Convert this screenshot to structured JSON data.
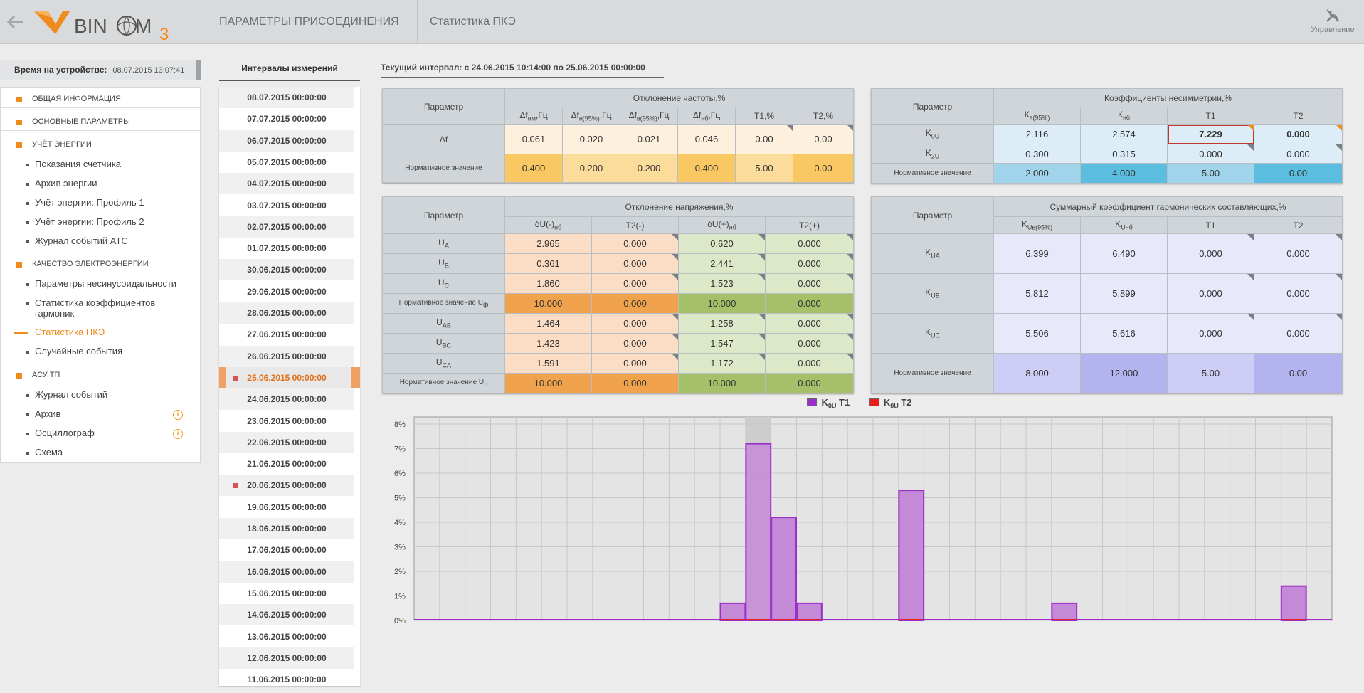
{
  "header": {
    "logo_text": "BINOM3",
    "section1": "ПАРАМЕТРЫ ПРИСОЕДИНЕНИЯ",
    "section2": "Статистика ПКЭ",
    "tools_label": "Управление"
  },
  "device": {
    "label": "Время на устройстве:",
    "value": "08.07.2015 13:07:41"
  },
  "menu": {
    "groups": [
      "ОБЩАЯ ИНФОРМАЦИЯ",
      "ОСНОВНЫЕ ПАРАМЕТРЫ",
      "УЧЁТ ЭНЕРГИИ",
      "КАЧЕСТВО ЭЛЕКТРОЭНЕРГИИ",
      "АСУ ТП"
    ],
    "energy_items": [
      "Показания счетчика",
      "Архив энергии",
      "Учёт энергии: Профиль 1",
      "Учёт энергии: Профиль 2",
      "Журнал событий АТС"
    ],
    "quality_items": [
      "Параметры несинусоидальности",
      "Статистика коэффициентов",
      "гармоник",
      "Статистика ПКЭ",
      "Случайные события"
    ],
    "asu_items": [
      "Журнал событий",
      "Архив",
      "Осциллограф",
      "Схема"
    ],
    "warn_glyph": "i"
  },
  "intervals": {
    "title": "Интервалы измерений",
    "items": [
      "08.07.2015 00:00:00",
      "07.07.2015 00:00:00",
      "06.07.2015 00:00:00",
      "05.07.2015 00:00:00",
      "04.07.2015 00:00:00",
      "03.07.2015 00:00:00",
      "02.07.2015 00:00:00",
      "01.07.2015 00:00:00",
      "30.06.2015 00:00:00",
      "29.06.2015 00:00:00",
      "28.06.2015 00:00:00",
      "27.06.2015 00:00:00",
      "26.06.2015 00:00:00",
      "25.06.2015 00:00:00",
      "24.06.2015 00:00:00",
      "23.06.2015 00:00:00",
      "22.06.2015 00:00:00",
      "21.06.2015 00:00:00",
      "20.06.2015 00:00:00",
      "19.06.2015 00:00:00",
      "18.06.2015 00:00:00",
      "17.06.2015 00:00:00",
      "16.06.2015 00:00:00",
      "15.06.2015 00:00:00",
      "14.06.2015 00:00:00",
      "13.06.2015 00:00:00",
      "12.06.2015 00:00:00",
      "11.06.2015 00:00:00"
    ],
    "selected_index": 13,
    "marked_indices": [
      13,
      18
    ]
  },
  "current_interval": "Текущий интервал: с 24.06.2015 10:14:00 по 25.06.2015 00:00:00",
  "freq_table": {
    "param_header": "Параметр",
    "group_header": "Отклонение частоты,%",
    "cols": [
      "Δf_нм,Гц",
      "Δf_н(95%),Гц",
      "Δf_в(95%),Гц",
      "Δf_нб,Гц",
      "T1,%",
      "T2,%"
    ],
    "row_label": "Δf",
    "values": [
      "0.061",
      "0.020",
      "0.021",
      "0.046",
      "0.00",
      "0.00"
    ],
    "norm_label": "Нормативное значение",
    "norm_values": [
      "0.400",
      "0.200",
      "0.200",
      "0.400",
      "5.00",
      "0.00"
    ]
  },
  "unb_table": {
    "param_header": "Параметр",
    "group_header": "Коэффициенты несимметрии,%",
    "cols": [
      "К_в(95%)",
      "К_нб",
      "T1",
      "T2"
    ],
    "rows": [
      {
        "label": "K_0U",
        "values": [
          "2.116",
          "2.574",
          "7.229",
          "0.000"
        ]
      },
      {
        "label": "K_2U",
        "values": [
          "0.300",
          "0.315",
          "0.000",
          "0.000"
        ]
      }
    ],
    "norm_label": "Нормативное значение",
    "norm_values": [
      "2.000",
      "4.000",
      "5.00",
      "0.00"
    ]
  },
  "volt_table": {
    "param_header": "Параметр",
    "group_header": "Отклонение напряжения,%",
    "cols": [
      "δU(-)_нб",
      "T2(-)",
      "δU(+)_нб",
      "T2(+)"
    ],
    "rows": [
      {
        "label": "U_A",
        "values": [
          "2.965",
          "0.000",
          "0.620",
          "0.000"
        ]
      },
      {
        "label": "U_B",
        "values": [
          "0.361",
          "0.000",
          "2.441",
          "0.000"
        ]
      },
      {
        "label": "U_C",
        "values": [
          "1.860",
          "0.000",
          "1.523",
          "0.000"
        ]
      },
      {
        "label": "Нормативное значение U_ф",
        "values": [
          "10.000",
          "0.000",
          "10.000",
          "0.000"
        ],
        "norm": true
      },
      {
        "label": "U_AB",
        "values": [
          "1.464",
          "0.000",
          "1.258",
          "0.000"
        ]
      },
      {
        "label": "U_BC",
        "values": [
          "1.423",
          "0.000",
          "1.547",
          "0.000"
        ]
      },
      {
        "label": "U_CA",
        "values": [
          "1.591",
          "0.000",
          "1.172",
          "0.000"
        ]
      },
      {
        "label": "Нормативное значение U_л",
        "values": [
          "10.000",
          "0.000",
          "10.000",
          "0.000"
        ],
        "norm": true
      }
    ]
  },
  "harm_table": {
    "param_header": "Параметр",
    "group_header": "Суммарный коэффициент гармонических составляющих,%",
    "cols": [
      "K_Uв(95%)",
      "K_Uнб",
      "T1",
      "T2"
    ],
    "rows": [
      {
        "label": "K_UA",
        "values": [
          "6.399",
          "6.490",
          "0.000",
          "0.000"
        ]
      },
      {
        "label": "K_UB",
        "values": [
          "5.812",
          "5.899",
          "0.000",
          "0.000"
        ]
      },
      {
        "label": "K_UC",
        "values": [
          "5.506",
          "5.616",
          "0.000",
          "0.000"
        ]
      }
    ],
    "norm_label": "Нормативное значение",
    "norm_values": [
      "8.000",
      "12.000",
      "5.00",
      "0.00"
    ]
  },
  "colors": {
    "series_t1": "#9b30c8",
    "series_t1_fill": "#c48ad8",
    "series_t2": "#e8201c",
    "accent": "#f08c1e"
  },
  "chart_data": {
    "type": "bar",
    "series": [
      {
        "name": "K0U T1",
        "values": [
          0,
          0,
          0,
          0,
          0,
          0,
          0,
          0,
          0,
          0,
          0,
          0,
          0.7,
          7.2,
          4.2,
          0.7,
          0,
          0,
          0,
          5.3,
          0,
          0,
          0,
          0,
          0,
          0.7,
          0,
          0,
          0,
          0,
          0,
          0,
          0,
          0,
          1.4,
          0
        ]
      },
      {
        "name": "K0U T2",
        "values": [
          0,
          0,
          0,
          0,
          0,
          0,
          0,
          0,
          0,
          0,
          0,
          0,
          0,
          0,
          0,
          0,
          0,
          0,
          0,
          0,
          0,
          0,
          0,
          0,
          0,
          0,
          0,
          0,
          0,
          0,
          0,
          0,
          0,
          0,
          0,
          0
        ]
      }
    ],
    "y_ticks": [
      "0%",
      "1%",
      "2%",
      "3%",
      "4%",
      "5%",
      "6%",
      "7%",
      "8%"
    ],
    "ylim": [
      0,
      8
    ],
    "highlight_index": 13,
    "grid": true,
    "legend": "top-center"
  }
}
